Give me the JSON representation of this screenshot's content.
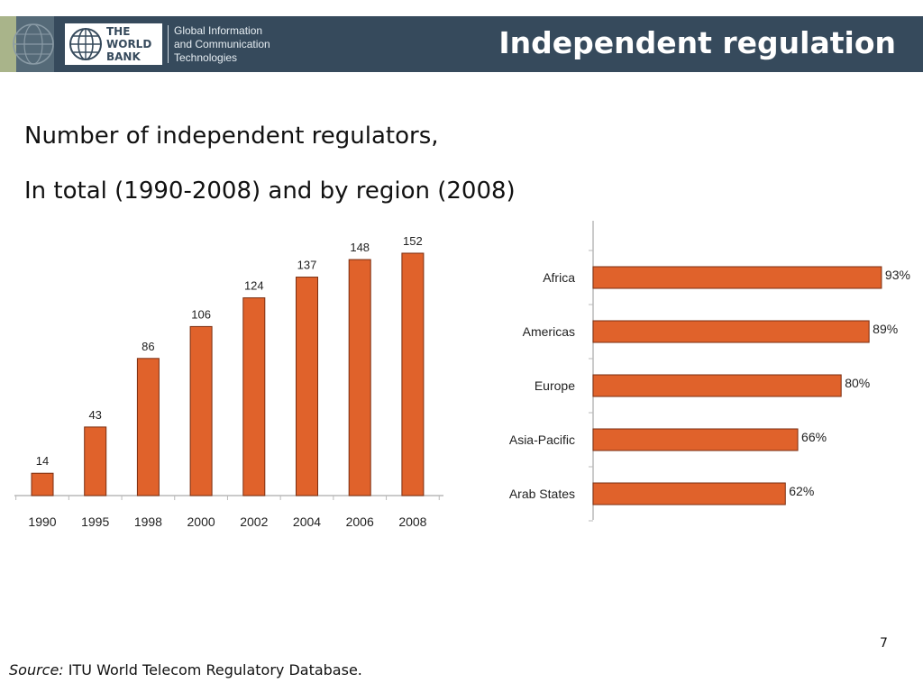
{
  "header": {
    "title": "Independent regulation",
    "logo_lines": [
      "THE",
      "WORLD",
      "BANK"
    ],
    "logo_sub_lines": [
      "Global Information",
      "and Communication",
      "Technologies"
    ]
  },
  "subtitle": {
    "line1": "Number of independent regulators,",
    "line2": "In total (1990-2008) and by region (2008)"
  },
  "chart_data": [
    {
      "type": "bar",
      "title": "",
      "categories": [
        "1990",
        "1995",
        "1998",
        "2000",
        "2002",
        "2004",
        "2006",
        "2008"
      ],
      "values": [
        14,
        43,
        86,
        106,
        124,
        137,
        148,
        152
      ],
      "data_labels": [
        "14",
        "43",
        "86",
        "106",
        "124",
        "137",
        "148",
        "152"
      ],
      "ylim": [
        0,
        152
      ],
      "grid": false,
      "color": "#e0622b"
    },
    {
      "type": "bar",
      "orientation": "horizontal",
      "title": "",
      "categories": [
        "Africa",
        "Americas",
        "Europe",
        "Asia-Pacific",
        "Arab States"
      ],
      "values": [
        93,
        89,
        80,
        66,
        62
      ],
      "data_labels": [
        "93%",
        "89%",
        "80%",
        "66%",
        "62%"
      ],
      "xlim": [
        0,
        100
      ],
      "grid": false,
      "color": "#e0622b"
    }
  ],
  "page_number": "7",
  "footer": {
    "source_label": "Source:",
    "source_text": " ITU World Telecom Regulatory Database."
  },
  "colors": {
    "header_bg": "#364a5c",
    "bar": "#e0622b",
    "bar_outline": "#7a2e10"
  },
  "icons": {
    "logo": "world-bank-globe-icon",
    "decoration": "globe-outline-icon"
  }
}
